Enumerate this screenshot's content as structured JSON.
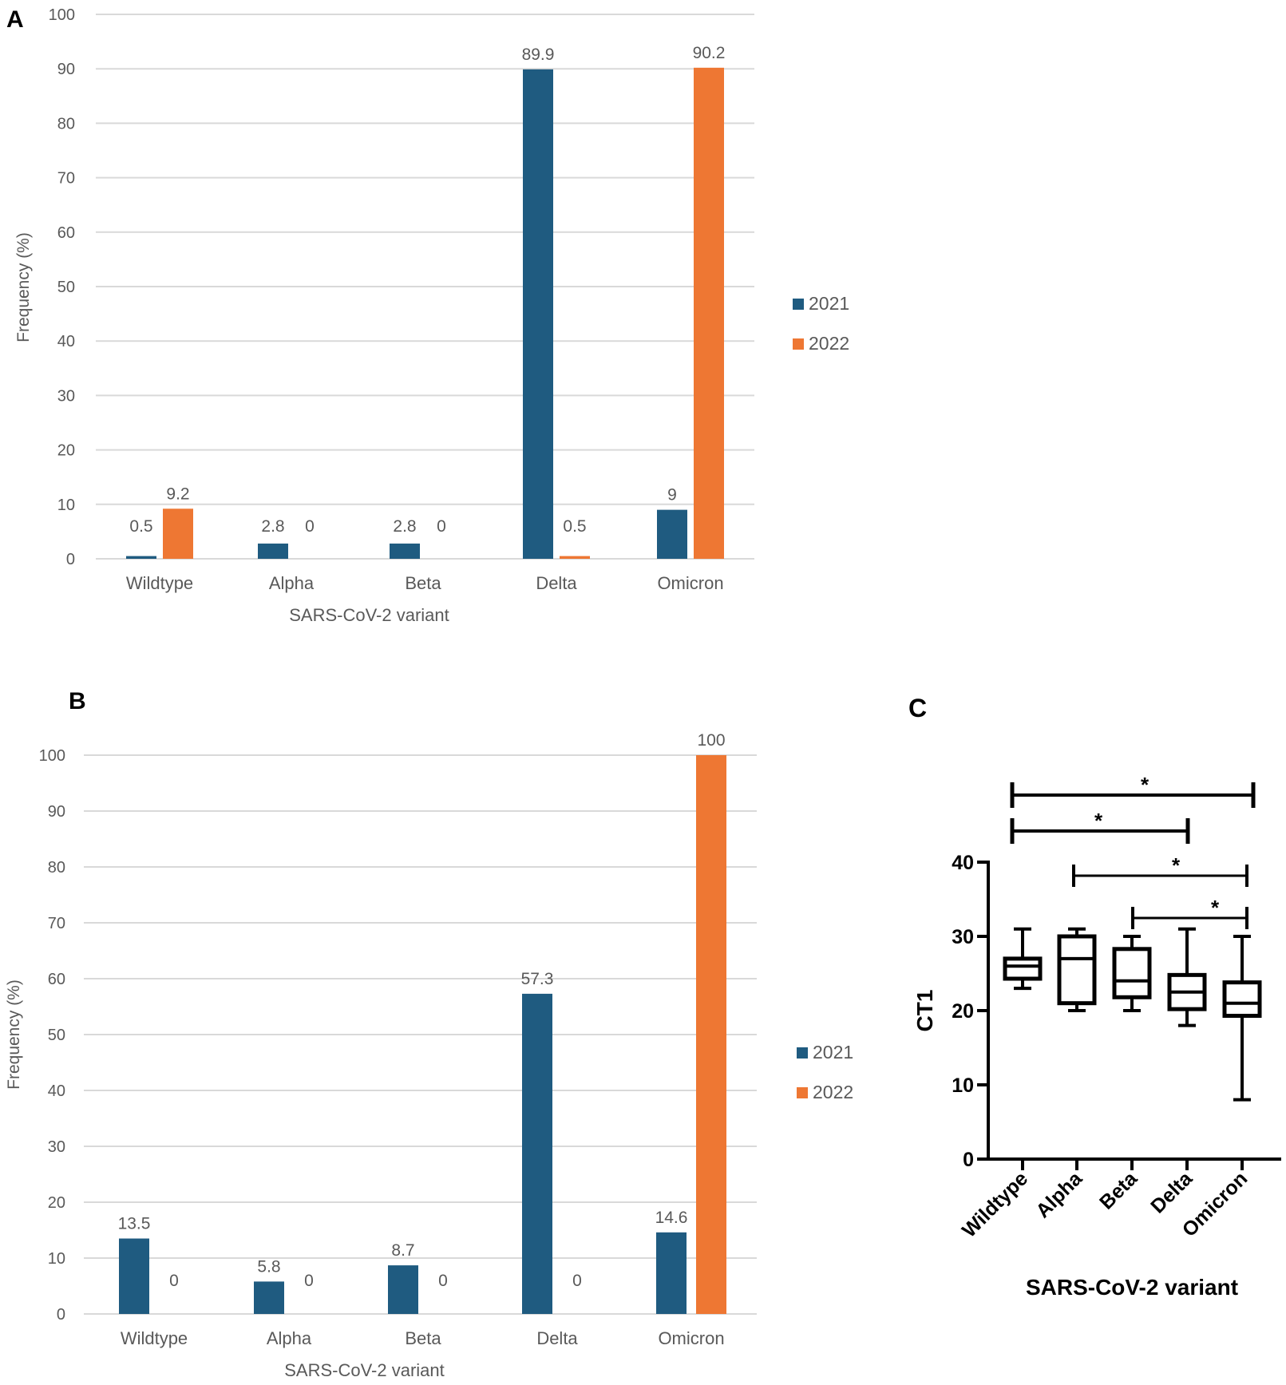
{
  "colors": {
    "series_2021": "#1f5b80",
    "series_2022": "#ee7733",
    "grid": "#d9d9d9",
    "text": "#595959"
  },
  "chart_data": [
    {
      "panel": "A",
      "type": "bar",
      "title": "",
      "xlabel": "SARS-CoV-2 variant",
      "ylabel": "Frequency (%)",
      "ylim": [
        0,
        100
      ],
      "yticks": [
        0,
        10,
        20,
        30,
        40,
        50,
        60,
        70,
        80,
        90,
        100
      ],
      "grid": true,
      "legend_position": "right",
      "categories": [
        "Wildtype",
        "Alpha",
        "Beta",
        "Delta",
        "Omicron"
      ],
      "series": [
        {
          "name": "2021",
          "values": [
            0.5,
            2.8,
            2.8,
            89.9,
            9
          ]
        },
        {
          "name": "2022",
          "values": [
            9.2,
            0,
            0,
            0.5,
            90.2
          ]
        }
      ]
    },
    {
      "panel": "B",
      "type": "bar",
      "title": "",
      "xlabel": "SARS-CoV-2 variant",
      "ylabel": "Frequency (%)",
      "ylim": [
        0,
        100
      ],
      "yticks": [
        0,
        10,
        20,
        30,
        40,
        50,
        60,
        70,
        80,
        90,
        100
      ],
      "grid": true,
      "legend_position": "right",
      "categories": [
        "Wildtype",
        "Alpha",
        "Beta",
        "Delta",
        "Omicron"
      ],
      "series": [
        {
          "name": "2021",
          "values": [
            13.5,
            5.8,
            8.7,
            57.3,
            14.6
          ]
        },
        {
          "name": "2022",
          "values": [
            0,
            0,
            0,
            0,
            100
          ]
        }
      ]
    },
    {
      "panel": "C",
      "type": "box",
      "title": "",
      "xlabel": "SARS-CoV-2 variant",
      "ylabel": "CT1",
      "ylim": [
        0,
        40
      ],
      "yticks": [
        0,
        10,
        20,
        30,
        40
      ],
      "grid": false,
      "categories": [
        "Wildtype",
        "Alpha",
        "Beta",
        "Delta",
        "Omicron"
      ],
      "boxes": [
        {
          "min": 23,
          "q1": 24.3,
          "median": 26,
          "q3": 27,
          "max": 31
        },
        {
          "min": 20,
          "q1": 21,
          "median": 27,
          "q3": 30,
          "max": 31
        },
        {
          "min": 20,
          "q1": 21.8,
          "median": 24,
          "q3": 28.3,
          "max": 30
        },
        {
          "min": 18,
          "q1": 20.2,
          "median": 22.5,
          "q3": 24.8,
          "max": 31
        },
        {
          "min": 8,
          "q1": 19.3,
          "median": 21,
          "q3": 23.8,
          "max": 30
        }
      ],
      "significance": [
        {
          "from": "Wildtype",
          "to": "Omicron",
          "label": "*"
        },
        {
          "from": "Wildtype",
          "to": "Delta",
          "label": "*"
        },
        {
          "from": "Alpha",
          "to": "Omicron",
          "label": "*"
        },
        {
          "from": "Beta",
          "to": "Omicron",
          "label": "*"
        }
      ]
    }
  ],
  "panels": {
    "a_label": "A",
    "b_label": "B",
    "c_label": "C"
  }
}
